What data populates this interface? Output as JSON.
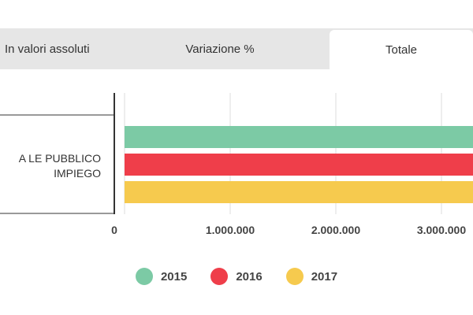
{
  "tabs": [
    {
      "label": "In valori assoluti"
    },
    {
      "label": "Variazione %"
    },
    {
      "label": "Totale"
    }
  ],
  "chart_data": {
    "type": "bar",
    "orientation": "horizontal",
    "categories": [
      "A LE PUBBLICO IMPIEGO"
    ],
    "category_lines": [
      "A LE PUBBLICO",
      "IMPIEGO"
    ],
    "x_ticks": [
      0,
      1000000,
      2000000,
      3000000
    ],
    "x_tick_labels": [
      "0",
      "1.000.000",
      "2.000.000",
      "3.000.000"
    ],
    "xlim": [
      0,
      3200000
    ],
    "grid": true,
    "legend_position": "bottom",
    "series": [
      {
        "name": "2015",
        "color": "#7ccaa5",
        "values": [
          3300000
        ]
      },
      {
        "name": "2016",
        "color": "#ef3e4a",
        "values": [
          3300000
        ]
      },
      {
        "name": "2017",
        "color": "#f6ca4e",
        "values": [
          3300000
        ]
      }
    ]
  }
}
